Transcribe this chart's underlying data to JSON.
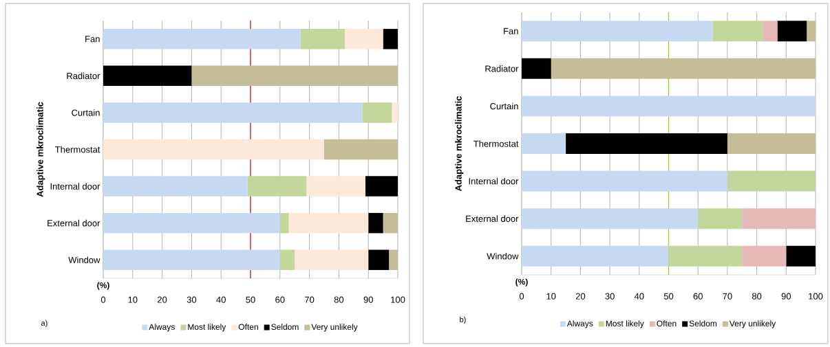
{
  "chart_data": [
    {
      "type": "bar",
      "orientation": "horizontal",
      "stacked": true,
      "ylabel": "Adaptive mkroclimatic",
      "categories": [
        "Fan",
        "Radiator",
        "Curtain",
        "Thermostat",
        "Internal door",
        "External door",
        "Window"
      ],
      "series": [
        {
          "name": "Always",
          "color": "#c6d9f1",
          "values": [
            67,
            0,
            88,
            0,
            49,
            60,
            60
          ]
        },
        {
          "name": "Most likely",
          "color": "#c3d69b",
          "values": [
            15,
            0,
            10,
            0,
            20,
            3,
            5
          ]
        },
        {
          "name": "Often",
          "color": "#fde9d9",
          "values": [
            13,
            0,
            2,
            75,
            20,
            27,
            25
          ]
        },
        {
          "name": "Seldom",
          "color": "#000000",
          "values": [
            5,
            30,
            0,
            0,
            11,
            5,
            7
          ]
        },
        {
          "name": "Very unlikely",
          "color": "#c4bd97",
          "values": [
            0,
            70,
            0,
            25,
            0,
            5,
            3
          ]
        }
      ],
      "xlim": [
        0,
        100
      ],
      "xticks": [
        0,
        10,
        20,
        30,
        40,
        50,
        60,
        70,
        80,
        90,
        100
      ],
      "grid": "x",
      "legend": "bottom",
      "ref_lines": [
        {
          "axis": "x",
          "value": 50,
          "color": "#e02020"
        }
      ],
      "annotations": [
        "(%)",
        "a)"
      ]
    },
    {
      "type": "bar",
      "orientation": "horizontal",
      "stacked": true,
      "ylabel": "Adaptive mkroclimatic",
      "categories": [
        "Fan",
        "Radiator",
        "Curtain",
        "Thermostat",
        "Internal door",
        "External door",
        "Window"
      ],
      "series": [
        {
          "name": "Always",
          "color": "#c6d9f1",
          "values": [
            65,
            0,
            100,
            15,
            70,
            60,
            50
          ]
        },
        {
          "name": "Most likely",
          "color": "#c3d69b",
          "values": [
            17,
            0,
            0,
            0,
            30,
            15,
            25
          ]
        },
        {
          "name": "Often",
          "color": "#e6b9b8",
          "values": [
            5,
            0,
            0,
            0,
            0,
            25,
            15
          ]
        },
        {
          "name": "Seldom",
          "color": "#000000",
          "values": [
            10,
            10,
            0,
            55,
            0,
            0,
            10
          ]
        },
        {
          "name": "Very unlikely",
          "color": "#c4bd97",
          "values": [
            3,
            90,
            0,
            30,
            0,
            0,
            0
          ]
        }
      ],
      "xlim": [
        0,
        100
      ],
      "xticks": [
        0,
        10,
        20,
        30,
        40,
        50,
        60,
        70,
        80,
        90,
        100
      ],
      "grid": "x",
      "legend": "bottom",
      "ref_lines": [
        {
          "axis": "x",
          "value": 50,
          "color": "#9acd32"
        }
      ],
      "annotations": [
        "(%)",
        "b)"
      ]
    }
  ]
}
